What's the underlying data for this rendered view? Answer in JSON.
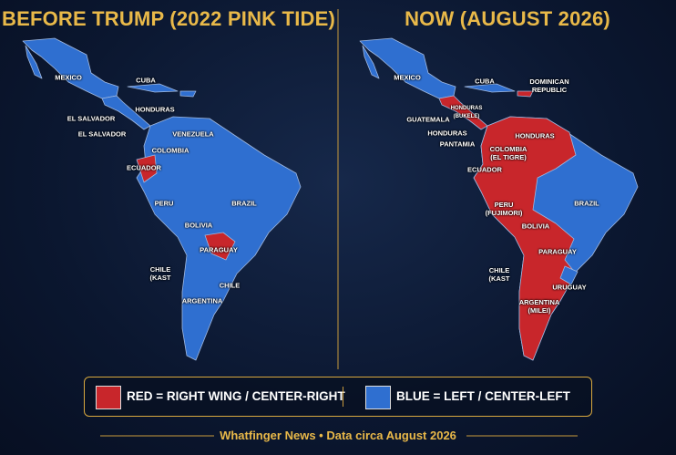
{
  "panels": [
    {
      "title": "BEFORE TRUMP (2022 PINK TIDE)",
      "labels": [
        "MEXICO",
        "CUBA",
        "HONDURAS",
        "EL SALVADOR",
        "EL SALVADOR",
        "VENEZUELA",
        "COLOMBIA",
        "ECUADOR",
        "PERU",
        "BRAZIL",
        "BOLIVIA",
        "PARAGUAY",
        "CHILE (KAST",
        "ARGENTINA",
        "CHILE"
      ]
    },
    {
      "title": "NOW (AUGUST 2026)",
      "labels": [
        "MEXICO",
        "CUBA",
        "DOMINICAN REPUBLIC",
        "HONDURAS (BUKELE)",
        "GUATEMALA",
        "HONDURAS",
        "PANTAMIA",
        "HONDURAS",
        "COLOMBIA (EL TIGRE)",
        "ECUADOR",
        "PERU (FUJIMORI)",
        "BRAZIL",
        "BOLIVIA",
        "PARAGUAY",
        "CHILE (KAST",
        "URUGUAY",
        "ARGENTINA (MILEI)"
      ]
    }
  ],
  "legend": [
    {
      "label": "RED = RIGHT WING / CENTER-RIGHT",
      "color": "#c8262b"
    },
    {
      "label": "BLUE = LEFT / CENTER-LEFT",
      "color": "#2f6fd0"
    }
  ],
  "footer": "Whatfinger News • Data circa August 2026"
}
